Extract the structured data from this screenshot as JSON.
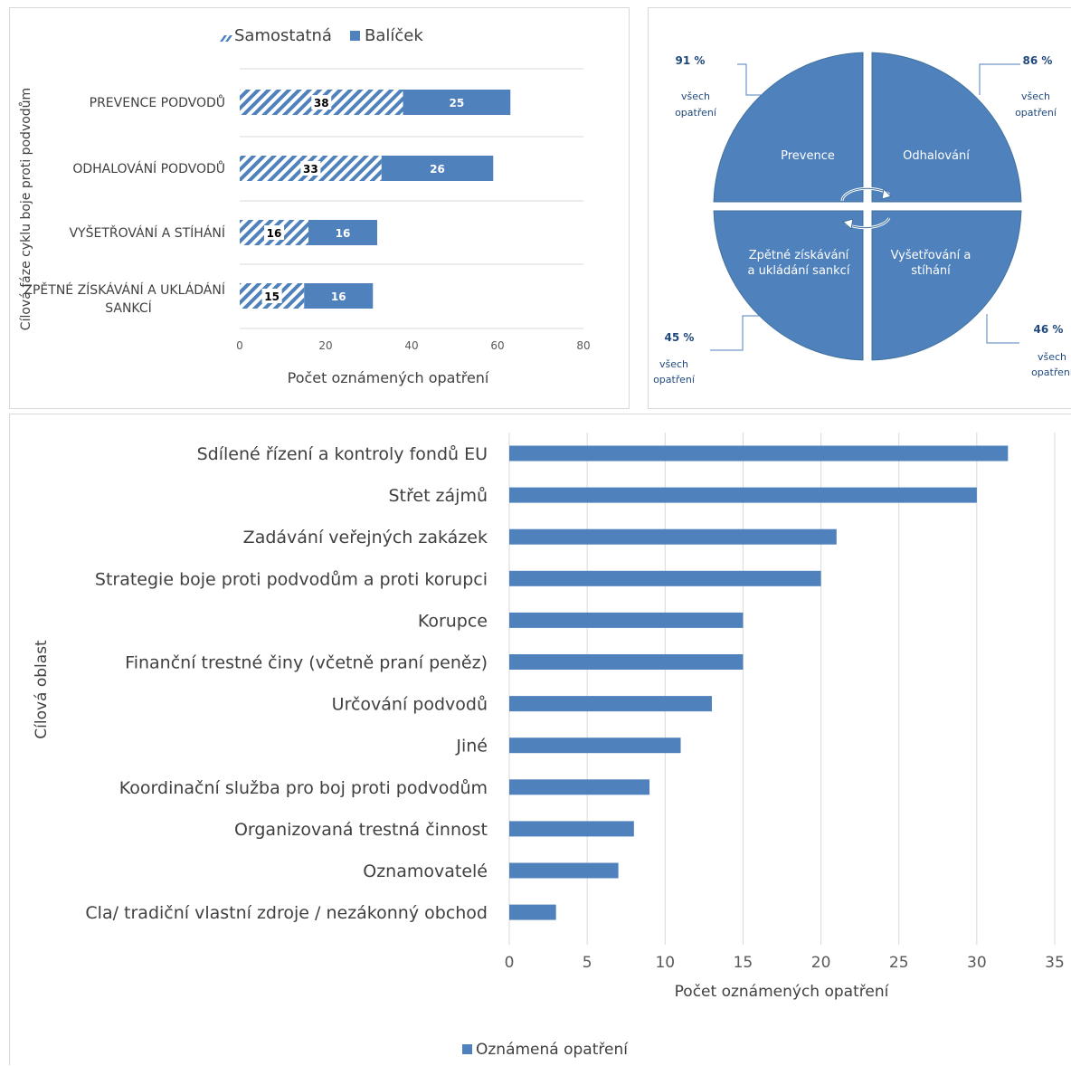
{
  "chart_data": [
    {
      "type": "bar",
      "stacked": true,
      "orientation": "horizontal",
      "categories": [
        "PREVENCE PODVODŮ",
        "ODHALOVÁNÍ PODVODŮ",
        "VYŠETŘOVÁNÍ A STÍHÁNÍ",
        "ZPĚTNÉ ZÍSKÁVÁNÍ A UKLÁDÁNÍ SANKCÍ"
      ],
      "series": [
        {
          "name": "Samostatná",
          "values": [
            38,
            33,
            16,
            15
          ],
          "pattern": "diagonal-hatch",
          "color": "#4f81bd"
        },
        {
          "name": "Balíček",
          "values": [
            25,
            26,
            16,
            16
          ],
          "color": "#4f81bd"
        }
      ],
      "xlabel": "Počet oznámených opatření",
      "ylabel": "Cílová fáze cyklu boje proti podvodům",
      "xlim": [
        0,
        80
      ],
      "xticks": [
        0,
        20,
        40,
        60,
        80
      ],
      "legend_position": "top",
      "grid": "horizontal-separators"
    },
    {
      "type": "pie",
      "quadrants": [
        {
          "label": "Prevence",
          "percent": "91 %",
          "note": "všech opatření"
        },
        {
          "label": "Odhalování",
          "percent": "86 %",
          "note": "všech opatření"
        },
        {
          "label": "Zpětné získávání a ukládání sankcí",
          "percent": "45 %",
          "note": "všech opatření"
        },
        {
          "label": "Vyšetřování a stíhání",
          "percent": "46 %",
          "note": "všech opatření"
        }
      ],
      "color": "#4f81bd"
    },
    {
      "type": "bar",
      "orientation": "horizontal",
      "categories": [
        "Sdílené řízení a kontroly fondů EU",
        "Střet zájmů",
        "Zadávání veřejných zakázek",
        "Strategie boje proti podvodům a proti korupci",
        "Korupce",
        "Finanční trestné činy (včetně praní peněz)",
        "Určování podvodů",
        "Jiné",
        "Koordinační služba pro boj proti podvodům",
        "Organizovaná trestná činnost",
        "Oznamovatelé",
        "Cla/ tradiční vlastní zdroje / nezákonný obchod"
      ],
      "series": [
        {
          "name": "Oznámená opatření",
          "values": [
            32,
            30,
            21,
            20,
            15,
            15,
            13,
            11,
            9,
            8,
            7,
            3
          ],
          "color": "#4f81bd"
        }
      ],
      "xlabel": "Počet oznámených opatření",
      "ylabel": "Cílová oblast",
      "xlim": [
        0,
        35
      ],
      "xticks": [
        0,
        5,
        10,
        15,
        20,
        25,
        30,
        35
      ],
      "legend_position": "bottom",
      "grid": "vertical"
    }
  ]
}
